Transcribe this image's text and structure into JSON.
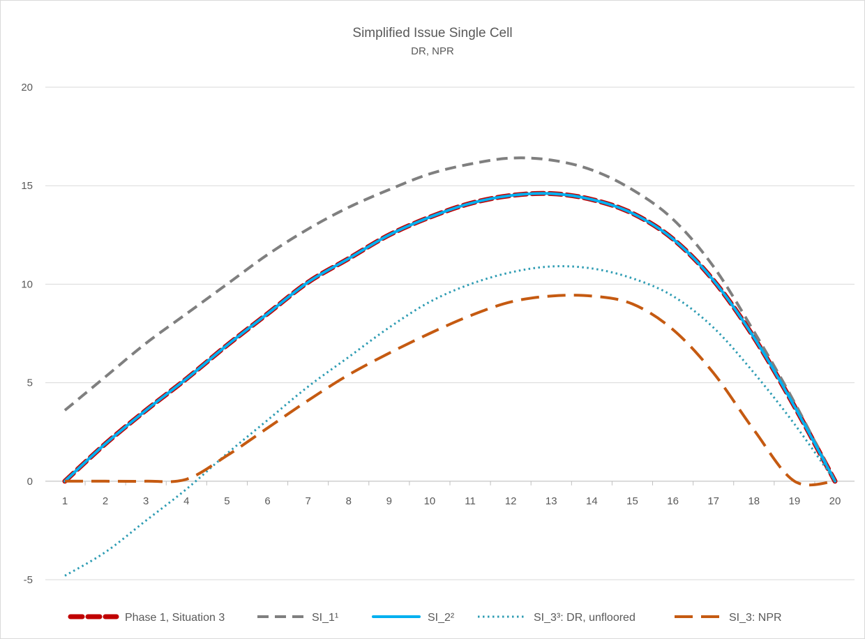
{
  "chart_data": {
    "type": "line",
    "title": "Simplified Issue Single Cell",
    "subtitle": "DR, NPR",
    "xlabel": "",
    "ylabel": "",
    "x": [
      1,
      2,
      3,
      4,
      5,
      6,
      7,
      8,
      9,
      10,
      11,
      12,
      13,
      14,
      15,
      16,
      17,
      18,
      19,
      20
    ],
    "xlim": [
      1,
      20
    ],
    "ylim": [
      -5,
      20
    ],
    "yticks": [
      -5,
      0,
      5,
      10,
      15,
      20
    ],
    "grid": true,
    "legend_position": "bottom",
    "series": [
      {
        "name": "Phase 1, Situation 3",
        "color": "#c00000",
        "style": "dashed-thick",
        "values": [
          0,
          1.9,
          3.6,
          5.2,
          6.9,
          8.5,
          10.1,
          11.3,
          12.5,
          13.4,
          14.1,
          14.5,
          14.6,
          14.3,
          13.6,
          12.3,
          10.2,
          7.3,
          3.8,
          0
        ]
      },
      {
        "name": "SI_1¹",
        "color": "#7f7f7f",
        "style": "dashed",
        "values": [
          3.6,
          5.3,
          7.0,
          8.5,
          10.0,
          11.5,
          12.8,
          13.9,
          14.8,
          15.6,
          16.1,
          16.4,
          16.3,
          15.8,
          14.8,
          13.3,
          10.9,
          7.6,
          4.0,
          0
        ]
      },
      {
        "name": "SI_2²",
        "color": "#00b0f0",
        "style": "solid",
        "values": [
          0,
          1.9,
          3.6,
          5.2,
          6.9,
          8.5,
          10.1,
          11.3,
          12.5,
          13.4,
          14.1,
          14.5,
          14.6,
          14.3,
          13.6,
          12.3,
          10.2,
          7.3,
          3.8,
          0
        ]
      },
      {
        "name": "SI_3³: DR, unfloored",
        "color": "#2e9cb3",
        "style": "dotted",
        "values": [
          -4.8,
          -3.6,
          -2.0,
          -0.4,
          1.4,
          3.1,
          4.8,
          6.3,
          7.8,
          9.1,
          10.0,
          10.6,
          10.9,
          10.8,
          10.3,
          9.4,
          7.8,
          5.5,
          2.9,
          0
        ]
      },
      {
        "name": "SI_3: NPR",
        "color": "#c55a11",
        "style": "long-dash",
        "values": [
          0,
          0,
          0,
          0.1,
          1.3,
          2.7,
          4.1,
          5.4,
          6.5,
          7.5,
          8.4,
          9.1,
          9.4,
          9.4,
          9.0,
          7.7,
          5.5,
          2.6,
          0,
          0
        ]
      }
    ]
  }
}
